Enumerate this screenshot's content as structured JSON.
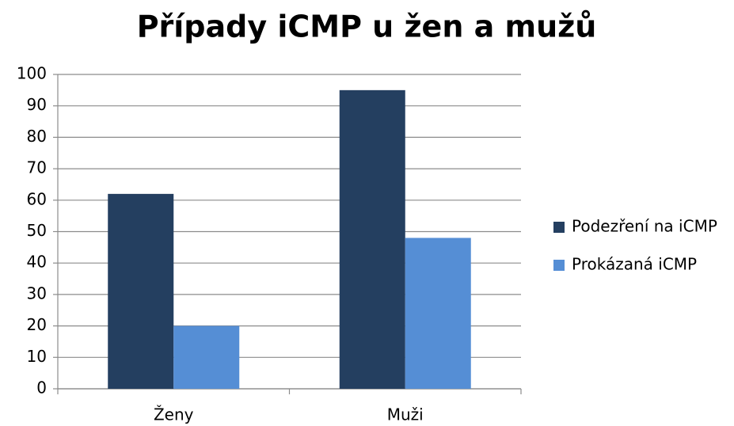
{
  "chart_data": {
    "type": "bar",
    "title": "Případy iCMP u žen a mužů",
    "categories": [
      "Ženy",
      "Muži"
    ],
    "series": [
      {
        "name": "Podezření na iCMP",
        "color": "#243f60",
        "values": [
          62,
          95
        ]
      },
      {
        "name": "Prokázaná iCMP",
        "color": "#558ed5",
        "values": [
          20,
          48
        ]
      }
    ],
    "ylim": [
      0,
      100
    ],
    "yticks": [
      0,
      10,
      20,
      30,
      40,
      50,
      60,
      70,
      80,
      90,
      100
    ],
    "grid": true,
    "legend": "right"
  }
}
